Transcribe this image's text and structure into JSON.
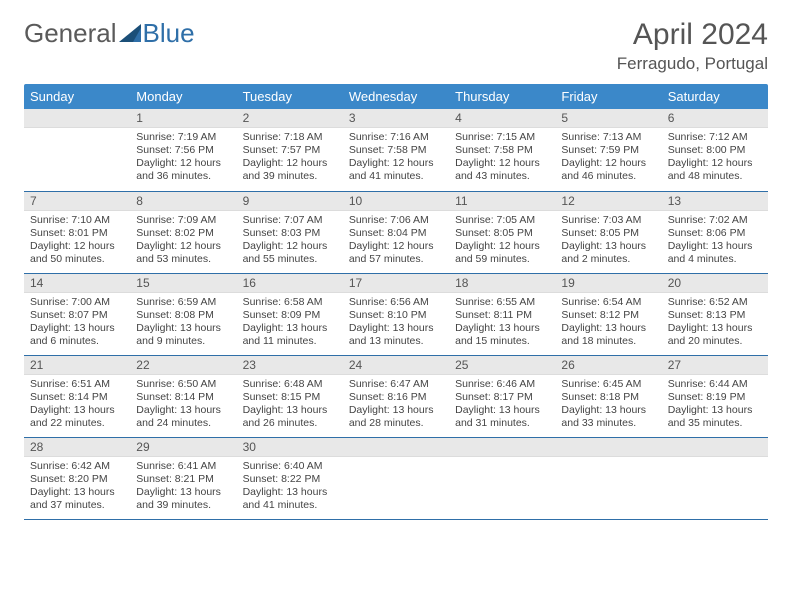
{
  "brand": {
    "part1": "General",
    "part2": "Blue"
  },
  "title": "April 2024",
  "location": "Ferragudo, Portugal",
  "colors": {
    "header_bg": "#3b88c9",
    "row_border": "#2f6fa8",
    "daynum_bg": "#e8e8e8",
    "text": "#444444"
  },
  "weekdays": [
    "Sunday",
    "Monday",
    "Tuesday",
    "Wednesday",
    "Thursday",
    "Friday",
    "Saturday"
  ],
  "weeks": [
    [
      null,
      {
        "n": "1",
        "sr": "7:19 AM",
        "ss": "7:56 PM",
        "dl": "12 hours and 36 minutes."
      },
      {
        "n": "2",
        "sr": "7:18 AM",
        "ss": "7:57 PM",
        "dl": "12 hours and 39 minutes."
      },
      {
        "n": "3",
        "sr": "7:16 AM",
        "ss": "7:58 PM",
        "dl": "12 hours and 41 minutes."
      },
      {
        "n": "4",
        "sr": "7:15 AM",
        "ss": "7:58 PM",
        "dl": "12 hours and 43 minutes."
      },
      {
        "n": "5",
        "sr": "7:13 AM",
        "ss": "7:59 PM",
        "dl": "12 hours and 46 minutes."
      },
      {
        "n": "6",
        "sr": "7:12 AM",
        "ss": "8:00 PM",
        "dl": "12 hours and 48 minutes."
      }
    ],
    [
      {
        "n": "7",
        "sr": "7:10 AM",
        "ss": "8:01 PM",
        "dl": "12 hours and 50 minutes."
      },
      {
        "n": "8",
        "sr": "7:09 AM",
        "ss": "8:02 PM",
        "dl": "12 hours and 53 minutes."
      },
      {
        "n": "9",
        "sr": "7:07 AM",
        "ss": "8:03 PM",
        "dl": "12 hours and 55 minutes."
      },
      {
        "n": "10",
        "sr": "7:06 AM",
        "ss": "8:04 PM",
        "dl": "12 hours and 57 minutes."
      },
      {
        "n": "11",
        "sr": "7:05 AM",
        "ss": "8:05 PM",
        "dl": "12 hours and 59 minutes."
      },
      {
        "n": "12",
        "sr": "7:03 AM",
        "ss": "8:05 PM",
        "dl": "13 hours and 2 minutes."
      },
      {
        "n": "13",
        "sr": "7:02 AM",
        "ss": "8:06 PM",
        "dl": "13 hours and 4 minutes."
      }
    ],
    [
      {
        "n": "14",
        "sr": "7:00 AM",
        "ss": "8:07 PM",
        "dl": "13 hours and 6 minutes."
      },
      {
        "n": "15",
        "sr": "6:59 AM",
        "ss": "8:08 PM",
        "dl": "13 hours and 9 minutes."
      },
      {
        "n": "16",
        "sr": "6:58 AM",
        "ss": "8:09 PM",
        "dl": "13 hours and 11 minutes."
      },
      {
        "n": "17",
        "sr": "6:56 AM",
        "ss": "8:10 PM",
        "dl": "13 hours and 13 minutes."
      },
      {
        "n": "18",
        "sr": "6:55 AM",
        "ss": "8:11 PM",
        "dl": "13 hours and 15 minutes."
      },
      {
        "n": "19",
        "sr": "6:54 AM",
        "ss": "8:12 PM",
        "dl": "13 hours and 18 minutes."
      },
      {
        "n": "20",
        "sr": "6:52 AM",
        "ss": "8:13 PM",
        "dl": "13 hours and 20 minutes."
      }
    ],
    [
      {
        "n": "21",
        "sr": "6:51 AM",
        "ss": "8:14 PM",
        "dl": "13 hours and 22 minutes."
      },
      {
        "n": "22",
        "sr": "6:50 AM",
        "ss": "8:14 PM",
        "dl": "13 hours and 24 minutes."
      },
      {
        "n": "23",
        "sr": "6:48 AM",
        "ss": "8:15 PM",
        "dl": "13 hours and 26 minutes."
      },
      {
        "n": "24",
        "sr": "6:47 AM",
        "ss": "8:16 PM",
        "dl": "13 hours and 28 minutes."
      },
      {
        "n": "25",
        "sr": "6:46 AM",
        "ss": "8:17 PM",
        "dl": "13 hours and 31 minutes."
      },
      {
        "n": "26",
        "sr": "6:45 AM",
        "ss": "8:18 PM",
        "dl": "13 hours and 33 minutes."
      },
      {
        "n": "27",
        "sr": "6:44 AM",
        "ss": "8:19 PM",
        "dl": "13 hours and 35 minutes."
      }
    ],
    [
      {
        "n": "28",
        "sr": "6:42 AM",
        "ss": "8:20 PM",
        "dl": "13 hours and 37 minutes."
      },
      {
        "n": "29",
        "sr": "6:41 AM",
        "ss": "8:21 PM",
        "dl": "13 hours and 39 minutes."
      },
      {
        "n": "30",
        "sr": "6:40 AM",
        "ss": "8:22 PM",
        "dl": "13 hours and 41 minutes."
      },
      null,
      null,
      null,
      null
    ]
  ],
  "labels": {
    "sunrise": "Sunrise: ",
    "sunset": "Sunset: ",
    "daylight": "Daylight: "
  }
}
